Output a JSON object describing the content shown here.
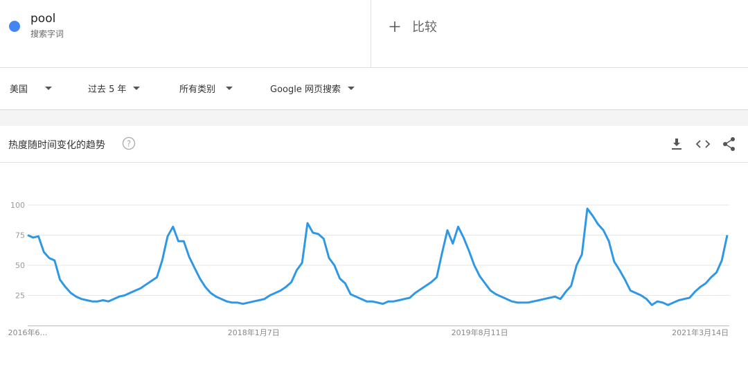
{
  "search_term": {
    "term": "pool",
    "subtitle": "搜索字词"
  },
  "compare": "比较",
  "filters": [
    "美国",
    "过去 5 年",
    "所有类别",
    "Google 网页搜索"
  ],
  "section_title": "热度随时间变化的趋势",
  "chart_data": {
    "type": "line",
    "color": "#2f98e6",
    "categories": [
      "2016年6…",
      null,
      null,
      null,
      null,
      null,
      null,
      null,
      null,
      null,
      null,
      null,
      null,
      null,
      null,
      null,
      null,
      null,
      null,
      null,
      null,
      null,
      null,
      null,
      null,
      null,
      null,
      null,
      null,
      null,
      null,
      null,
      null,
      null,
      null,
      null,
      null,
      null,
      null,
      null,
      null,
      null,
      "2018年1月7日",
      null,
      null,
      null,
      null,
      null,
      null,
      null,
      null,
      null,
      null,
      null,
      null,
      null,
      null,
      null,
      null,
      null,
      null,
      null,
      null,
      null,
      null,
      null,
      null,
      null,
      null,
      null,
      null,
      null,
      null,
      null,
      null,
      null,
      null,
      null,
      null,
      null,
      null,
      null,
      null,
      null,
      "2019年8月11日",
      null,
      null,
      null,
      null,
      null,
      null,
      null,
      null,
      null,
      null,
      null,
      null,
      null,
      null,
      null,
      null,
      null,
      null,
      null,
      null,
      null,
      null,
      null,
      null,
      null,
      null,
      null,
      null,
      null,
      null,
      null,
      null,
      null,
      null,
      null,
      null,
      null,
      null,
      null,
      null,
      "2021年3月14日",
      null,
      null,
      null,
      null,
      null
    ],
    "values": [
      75,
      73,
      74,
      61,
      56,
      54,
      38,
      32,
      27,
      24,
      22,
      21,
      20,
      20,
      21,
      20,
      22,
      24,
      25,
      27,
      29,
      31,
      34,
      37,
      40,
      54,
      74,
      82,
      70,
      70,
      57,
      48,
      39,
      32,
      27,
      24,
      22,
      20,
      19,
      19,
      18,
      19,
      20,
      21,
      22,
      25,
      27,
      29,
      32,
      36,
      46,
      52,
      85,
      77,
      76,
      72,
      56,
      50,
      39,
      35,
      26,
      24,
      22,
      20,
      20,
      19,
      18,
      20,
      20,
      21,
      22,
      23,
      27,
      30,
      33,
      36,
      40,
      60,
      79,
      68,
      82,
      73,
      62,
      50,
      41,
      35,
      29,
      26,
      24,
      22,
      20,
      19,
      19,
      19,
      20,
      21,
      22,
      23,
      24,
      22,
      28,
      33,
      50,
      59,
      97,
      91,
      84,
      79,
      70,
      53,
      46,
      38,
      29,
      27,
      25,
      22,
      17,
      20,
      19,
      17,
      19,
      21,
      22,
      23,
      28,
      32,
      35,
      40,
      44,
      54,
      75
    ],
    "ylim": [
      0,
      100
    ],
    "yticks": [
      25,
      50,
      75,
      100
    ],
    "grid": true
  }
}
